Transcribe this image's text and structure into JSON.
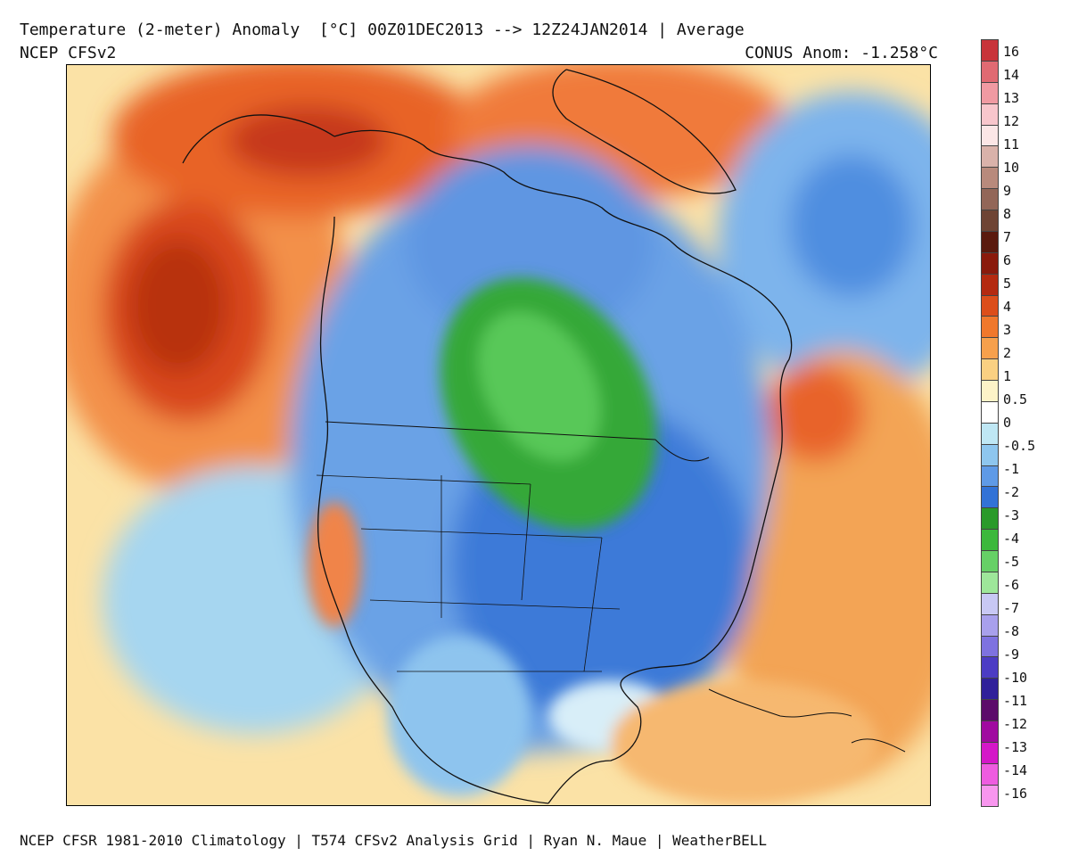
{
  "header": {
    "title": "Temperature (2-meter) Anomaly  [°C] 00Z01DEC2013 --> 12Z24JAN2014 | Average",
    "model": "NCEP CFSv2",
    "conus_anomaly": "CONUS Anom: -1.258°C"
  },
  "footer": {
    "credit": "NCEP CFSR 1981-2010 Climatology | T574 CFSv2 Analysis Grid | Ryan N. Maue | WeatherBELL"
  },
  "colorbar": {
    "labels": [
      "16",
      "14",
      "13",
      "12",
      "11",
      "10",
      "9",
      "8",
      "7",
      "6",
      "5",
      "4",
      "3",
      "2",
      "1",
      "0.5",
      "0",
      "-0.5",
      "-1",
      "-2",
      "-3",
      "-4",
      "-5",
      "-6",
      "-7",
      "-8",
      "-9",
      "-10",
      "-11",
      "-12",
      "-13",
      "-14",
      "-16"
    ],
    "colors": [
      "#c8343a",
      "#e06a72",
      "#f09aa2",
      "#f8c6cc",
      "#fbe6e6",
      "#d9b2aa",
      "#b88a7c",
      "#926658",
      "#6e4434",
      "#5a1a0e",
      "#8a1a0c",
      "#b42a10",
      "#dc4e1a",
      "#f0782c",
      "#f6a04c",
      "#fad082",
      "#fdf3c8",
      "#ffffff",
      "#bfe7f4",
      "#8ec6ee",
      "#5f9ae6",
      "#3272d6",
      "#2a9a2a",
      "#3cb83c",
      "#66d066",
      "#9ee69a",
      "#c8c8f4",
      "#a8a0ec",
      "#7e72e0",
      "#4c3cc4",
      "#30209a",
      "#5c0c6a",
      "#a00aa0",
      "#d418c8",
      "#ee5ce0",
      "#f896ee"
    ]
  },
  "map": {
    "region": "North America",
    "anomaly_regions": [
      {
        "area": "North Pacific (Gulf of Alaska)",
        "anomaly_c": "+4 to +5"
      },
      {
        "area": "Alaska / Yukon",
        "anomaly_c": "+2 to +4"
      },
      {
        "area": "Greenland",
        "anomaly_c": "+2 to +4"
      },
      {
        "area": "Central Canada / Upper Midwest",
        "anomaly_c": "-3 to -5"
      },
      {
        "area": "Eastern US",
        "anomaly_c": "-1 to -2"
      },
      {
        "area": "California",
        "anomaly_c": "+1 to +2"
      },
      {
        "area": "Western Atlantic",
        "anomaly_c": "+1 to +3"
      },
      {
        "area": "Caribbean / Gulf of Mexico",
        "anomaly_c": "+0.5 to +1"
      }
    ]
  }
}
